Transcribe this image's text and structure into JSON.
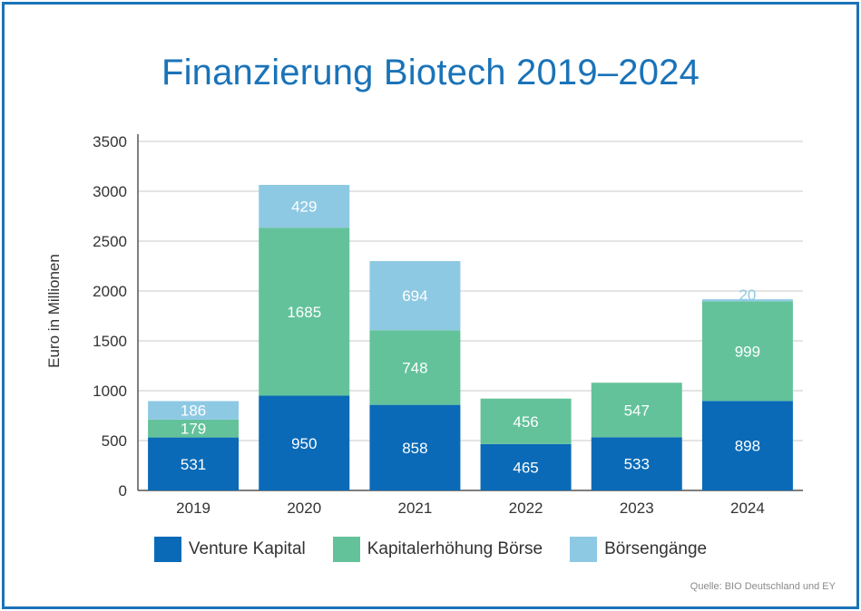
{
  "chart_data": {
    "type": "bar",
    "stacked": true,
    "title": "Finanzierung Biotech 2019–2024",
    "xlabel": "",
    "ylabel": "Euro in Millionen",
    "ylim": [
      0,
      3500
    ],
    "yticks": [
      0,
      500,
      1000,
      1500,
      2000,
      2500,
      3000,
      3500
    ],
    "grid": true,
    "legend_position": "bottom",
    "categories": [
      "2019",
      "2020",
      "2021",
      "2022",
      "2023",
      "2024"
    ],
    "series": [
      {
        "name": "Venture Kapital",
        "color": "#0a6ab7",
        "values": [
          531,
          950,
          858,
          465,
          533,
          898
        ]
      },
      {
        "name": "Kapitalerhöhung Börse",
        "color": "#63c29a",
        "values": [
          179,
          1685,
          748,
          456,
          547,
          999
        ]
      },
      {
        "name": "Börsengänge",
        "color": "#8ec9e3",
        "values": [
          186,
          429,
          694,
          0,
          0,
          20
        ]
      }
    ],
    "data_labels": [
      [
        "531",
        "950",
        "858",
        "465",
        "533",
        "898"
      ],
      [
        "179",
        "1685",
        "748",
        "456",
        "547",
        "999"
      ],
      [
        "186",
        "429",
        "694",
        "",
        "",
        "20"
      ]
    ],
    "source": "Quelle: BIO Deutschland und EY"
  }
}
